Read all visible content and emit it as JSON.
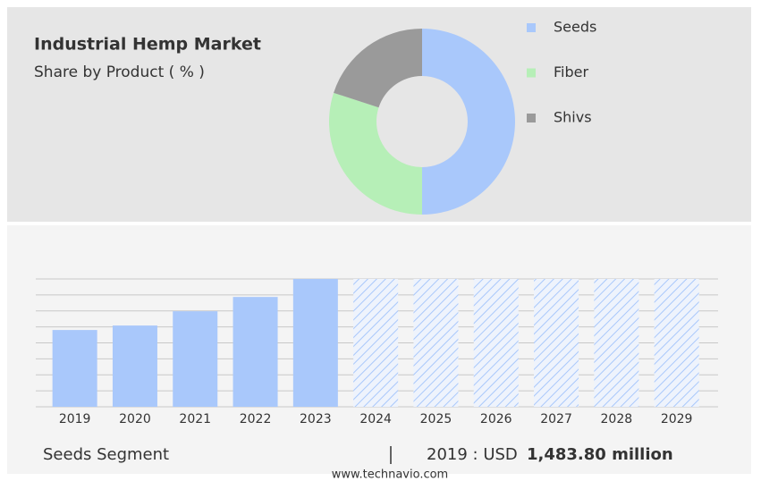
{
  "chart_data": [
    {
      "type": "pie",
      "title": "Industrial Hemp Market",
      "subtitle": "Share by Product ( % )",
      "categories": [
        "Seeds",
        "Fiber",
        "Shivs"
      ],
      "values": [
        50,
        30,
        20
      ],
      "colors": [
        "#a9c8fb",
        "#b6efb7",
        "#9a9a9a"
      ],
      "donut": true
    },
    {
      "type": "bar",
      "categories": [
        "2019",
        "2020",
        "2021",
        "2022",
        "2023",
        "2024",
        "2025",
        "2026",
        "2027",
        "2028",
        "2029"
      ],
      "values": [
        1483.8,
        1570,
        1846,
        2122,
        2470,
        null,
        null,
        null,
        null,
        null,
        null
      ],
      "color": "#a9c8fb",
      "ylim": [
        0,
        2470
      ],
      "grid": true
    }
  ],
  "footer": {
    "segment": "Seeds Segment",
    "label": "2019 : USD",
    "value": "1,483.80 million",
    "source": "www.technavio.com"
  }
}
